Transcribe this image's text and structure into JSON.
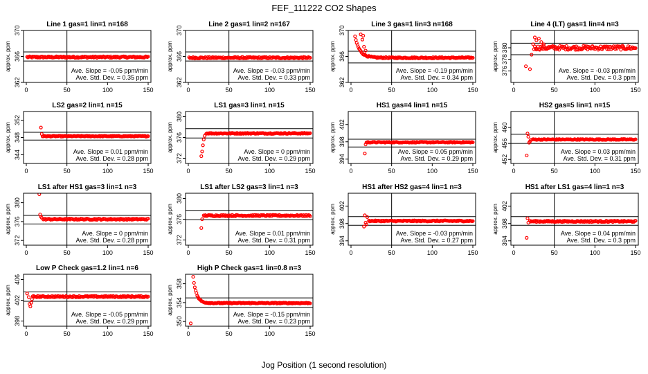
{
  "figure": {
    "title": "FEF_111222  CO2 Shapes",
    "xlabel": "Jog Position (1 second resolution)",
    "marker_color": "#ff0000"
  },
  "chart_data": [
    {
      "type": "scatter",
      "title": "Line 1 gas=1 lin=1 n=168",
      "ylabel": "approx. ppm",
      "xlim": [
        0,
        150
      ],
      "ylim": [
        362,
        370
      ],
      "yticks": [
        362,
        366,
        370
      ],
      "xticks": [
        0,
        50,
        100,
        150
      ],
      "hlines": [
        366.7,
        365.3
      ],
      "vline": 50,
      "slope_text": "Ave. Slope = -0.05 ppm/min",
      "sd_text": "Ave. Std. Dev. = 0.35 ppm",
      "shape": {
        "level": 365.9,
        "noise": 0.12,
        "start": 1,
        "end": 150,
        "step": 1,
        "transient": []
      }
    },
    {
      "type": "scatter",
      "title": "Line 2 gas=1 lin=2 n=167",
      "ylabel": "approx. ppm",
      "xlim": [
        0,
        150
      ],
      "ylim": [
        362,
        370
      ],
      "yticks": [
        362,
        366,
        370
      ],
      "xticks": [
        0,
        50,
        100,
        150
      ],
      "hlines": [
        366.7,
        365.3
      ],
      "vline": 50,
      "slope_text": "Ave. Slope = -0.03 ppm/min",
      "sd_text": "Ave. Std. Dev. = 0.33 ppm",
      "shape": {
        "level": 365.8,
        "noise": 0.12,
        "start": 1,
        "end": 150,
        "step": 1,
        "transient": []
      }
    },
    {
      "type": "scatter",
      "title": "Line 3 gas=1 lin=3 n=168",
      "ylabel": "approx. ppm",
      "xlim": [
        0,
        150
      ],
      "ylim": [
        362,
        370
      ],
      "yticks": [
        362,
        366,
        370
      ],
      "xticks": [
        0,
        50,
        100,
        150
      ],
      "hlines": [
        366.8,
        365.0
      ],
      "vline": 50,
      "slope_text": "Ave. Slope = -0.19 ppm/min",
      "sd_text": "Ave. Std. Dev. = 0.34 ppm",
      "shape": {
        "level": 365.8,
        "noise": 0.1,
        "start": 5,
        "end": 150,
        "step": 1,
        "decay_from": 369,
        "decay_tau": 6,
        "transient": [
          [
            5,
            370.5
          ],
          [
            8,
            370.2
          ],
          [
            12,
            369.4
          ],
          [
            14,
            368.6
          ],
          [
            15,
            369.2
          ],
          [
            16,
            367.5
          ],
          [
            18,
            366.9
          ]
        ]
      }
    },
    {
      "type": "scatter",
      "title": "Line 4 (LT) gas=1 lin=4 n=3",
      "ylabel": "approx. ppm",
      "xlim": [
        0,
        150
      ],
      "ylim": [
        374,
        383
      ],
      "yticks": [
        376,
        378,
        380
      ],
      "xticks": [
        0,
        50,
        100,
        150
      ],
      "hlines": [
        380.8,
        378.8
      ],
      "vline": 50,
      "slope_text": "Ave. Slope = -0.03 ppm/min",
      "sd_text": "Ave. Std. Dev. = 0.3 ppm",
      "shape": {
        "level": 380.0,
        "noise": 0.35,
        "start": 25,
        "end": 150,
        "step": 1,
        "transient": [
          [
            15,
            376.8
          ],
          [
            20,
            376.3
          ],
          [
            22,
            378.8
          ],
          [
            24,
            380.6
          ],
          [
            26,
            381.8
          ],
          [
            28,
            381.3
          ],
          [
            31,
            381.6
          ],
          [
            34,
            381.0
          ],
          [
            37,
            380.6
          ]
        ]
      }
    },
    {
      "type": "scatter",
      "title": "LS2 gas=2 lin=1 n=15",
      "ylabel": "approx. ppm",
      "xlim": [
        0,
        150
      ],
      "ylim": [
        342,
        354
      ],
      "yticks": [
        344,
        348,
        352
      ],
      "xticks": [
        0,
        50,
        100,
        150
      ],
      "hlines": [
        349.2,
        347.4
      ],
      "vline": 50,
      "slope_text": "Ave. Slope = 0.01 ppm/min",
      "sd_text": "Ave. Std. Dev. = 0.28 ppm",
      "shape": {
        "level": 348.3,
        "noise": 0.1,
        "start": 20,
        "end": 150,
        "step": 1,
        "transient": [
          [
            18,
            350.3
          ],
          [
            19,
            348.8
          ]
        ]
      }
    },
    {
      "type": "scatter",
      "title": "LS1 gas=3 lin=1 n=15",
      "ylabel": "approx. ppm",
      "xlim": [
        0,
        150
      ],
      "ylim": [
        371,
        381
      ],
      "yticks": [
        372,
        376,
        380
      ],
      "xticks": [
        0,
        50,
        100,
        150
      ],
      "hlines": [
        377.7,
        375.9
      ],
      "vline": 50,
      "slope_text": "Ave. Slope = 0 ppm/min",
      "sd_text": "Ave. Std. Dev. = 0.29 ppm",
      "shape": {
        "level": 376.8,
        "noise": 0.1,
        "start": 22,
        "end": 150,
        "step": 1,
        "transient": [
          [
            16,
            372.4
          ],
          [
            17,
            373.3
          ],
          [
            18,
            374.5
          ],
          [
            19,
            375.6
          ],
          [
            20,
            376.3
          ]
        ]
      }
    },
    {
      "type": "scatter",
      "title": "HS1 gas=4 lin=1 n=15",
      "ylabel": "approx. ppm",
      "xlim": [
        0,
        150
      ],
      "ylim": [
        393,
        405
      ],
      "yticks": [
        394,
        398,
        402
      ],
      "xticks": [
        0,
        50,
        100,
        150
      ],
      "hlines": [
        398.6,
        396.8
      ],
      "vline": 50,
      "slope_text": "Ave. Slope = 0.05 ppm/min",
      "sd_text": "Ave. Std. Dev. = 0.29 ppm",
      "shape": {
        "level": 397.9,
        "noise": 0.1,
        "start": 19,
        "end": 150,
        "step": 1,
        "transient": [
          [
            17,
            395.3
          ],
          [
            18,
            397.4
          ]
        ]
      }
    },
    {
      "type": "scatter",
      "title": "HS2 gas=5 lin=1 n=15",
      "ylabel": "approx. ppm",
      "xlim": [
        0,
        150
      ],
      "ylim": [
        451,
        464
      ],
      "yticks": [
        452,
        456,
        460
      ],
      "xticks": [
        0,
        50,
        100,
        150
      ],
      "hlines": [
        458.3,
        456.0
      ],
      "vline": 50,
      "slope_text": "Ave. Slope = 0.03 ppm/min",
      "sd_text": "Ave. Std. Dev. = 0.31 ppm",
      "shape": {
        "level": 457.0,
        "noise": 0.12,
        "start": 23,
        "end": 150,
        "step": 1,
        "transient": [
          [
            16,
            453.0
          ],
          [
            17,
            458.5
          ],
          [
            18,
            457.7
          ],
          [
            19,
            456.2
          ],
          [
            20,
            456.5
          ],
          [
            21,
            456.9
          ]
        ]
      }
    },
    {
      "type": "scatter",
      "title": "LS1 after HS1 gas=3 lin=1 n=3",
      "ylabel": "approx. ppm",
      "xlim": [
        0,
        150
      ],
      "ylim": [
        371,
        382
      ],
      "yticks": [
        372,
        376,
        380
      ],
      "xticks": [
        0,
        50,
        100,
        150
      ],
      "hlines": [
        377.3,
        375.5
      ],
      "vline": 50,
      "slope_text": "Ave. Slope = 0 ppm/min",
      "sd_text": "Ave. Std. Dev. = 0.28 ppm",
      "shape": {
        "level": 376.5,
        "noise": 0.13,
        "start": 21,
        "end": 150,
        "step": 1,
        "transient": [
          [
            16,
            381.8
          ],
          [
            17,
            377.5
          ],
          [
            18,
            377.0
          ],
          [
            19,
            376.8
          ]
        ]
      }
    },
    {
      "type": "scatter",
      "title": "LS1 after LS2 gas=3 lin=1 n=3",
      "ylabel": "approx. ppm",
      "xlim": [
        0,
        150
      ],
      "ylim": [
        371,
        381
      ],
      "yticks": [
        372,
        376,
        380
      ],
      "xticks": [
        0,
        50,
        100,
        150
      ],
      "hlines": [
        377.7,
        375.9
      ],
      "vline": 50,
      "slope_text": "Ave. Slope = 0.01 ppm/min",
      "sd_text": "Ave. Std. Dev. = 0.31 ppm",
      "shape": {
        "level": 376.7,
        "noise": 0.13,
        "start": 19,
        "end": 150,
        "step": 1,
        "transient": [
          [
            16,
            374.3
          ],
          [
            17,
            376.0
          ]
        ]
      }
    },
    {
      "type": "scatter",
      "title": "HS1 after HS2 gas=4 lin=1 n=3",
      "ylabel": "approx. ppm",
      "xlim": [
        0,
        150
      ],
      "ylim": [
        393,
        405
      ],
      "yticks": [
        394,
        398,
        402
      ],
      "xticks": [
        0,
        50,
        100,
        150
      ],
      "hlines": [
        399.6,
        397.6
      ],
      "vline": 50,
      "slope_text": "Ave. Slope = -0.03 ppm/min",
      "sd_text": "Ave. Std. Dev. = 0.27 ppm",
      "shape": {
        "level": 398.6,
        "noise": 0.12,
        "start": 22,
        "end": 150,
        "step": 1,
        "transient": [
          [
            16,
            397.3
          ],
          [
            17,
            399.9
          ],
          [
            18,
            398.2
          ],
          [
            19,
            397.8
          ],
          [
            20,
            399.5
          ]
        ]
      }
    },
    {
      "type": "scatter",
      "title": "HS1 after LS1 gas=4 lin=1 n=3",
      "ylabel": "approx. ppm",
      "xlim": [
        0,
        150
      ],
      "ylim": [
        393,
        405
      ],
      "yticks": [
        394,
        398,
        402
      ],
      "xticks": [
        0,
        50,
        100,
        150
      ],
      "hlines": [
        399.6,
        397.6
      ],
      "vline": 50,
      "slope_text": "Ave. Slope = 0.04 ppm/min",
      "sd_text": "Ave. Std. Dev. = 0.3 ppm",
      "shape": {
        "level": 398.5,
        "noise": 0.15,
        "start": 20,
        "end": 150,
        "step": 1,
        "transient": [
          [
            16,
            394.7
          ],
          [
            17,
            399.2
          ],
          [
            18,
            398.2
          ]
        ]
      }
    },
    {
      "type": "scatter",
      "title": "Low P Check gas=1.2 lin=1 n=6",
      "ylabel": "approx. ppm",
      "xlim": [
        0,
        150
      ],
      "ylim": [
        397,
        407
      ],
      "yticks": [
        398,
        402,
        406
      ],
      "xticks": [
        0,
        50,
        100,
        150
      ],
      "hlines": [
        403.6,
        401.8
      ],
      "vline": 50,
      "slope_text": "Ave. Slope = -0.05 ppm/min",
      "sd_text": "Ave. Std. Dev. = 0.29 ppm",
      "shape": {
        "level": 402.7,
        "noise": 0.13,
        "start": 8,
        "end": 150,
        "step": 1,
        "transient": [
          [
            1,
            403.3
          ],
          [
            3,
            402.6
          ],
          [
            4,
            401.3
          ],
          [
            5,
            400.8
          ],
          [
            6,
            401.5
          ],
          [
            7,
            402.2
          ]
        ]
      }
    },
    {
      "type": "scatter",
      "title": "High P Check gas=1 lin=0.8 n=3",
      "ylabel": "approx. ppm",
      "xlim": [
        0,
        150
      ],
      "ylim": [
        349,
        360
      ],
      "yticks": [
        350,
        354,
        358
      ],
      "xticks": [
        0,
        50,
        100,
        150
      ],
      "hlines": [
        355.0,
        353.0
      ],
      "vline": 50,
      "slope_text": "Ave. Slope = -0.15 ppm/min",
      "sd_text": "Ave. Std. Dev. = 0.23 ppm",
      "shape": {
        "level": 353.9,
        "noise": 0.1,
        "start": 6,
        "end": 150,
        "step": 1,
        "decay_from": 359.5,
        "decay_tau": 4,
        "transient": [
          [
            3,
            349.6
          ]
        ]
      }
    }
  ]
}
